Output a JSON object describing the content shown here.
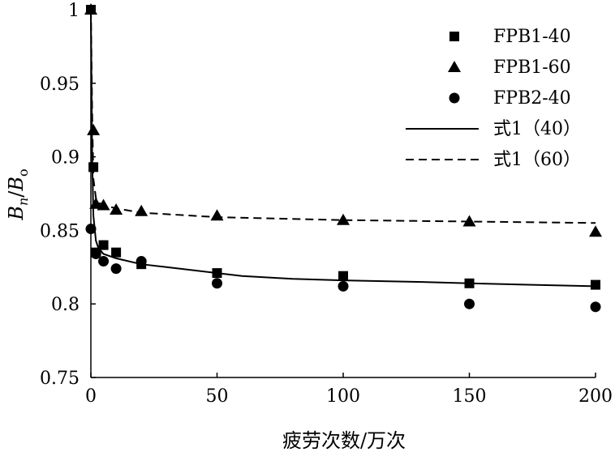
{
  "chart_data": {
    "type": "scatter",
    "xlabel": "疲劳次数/万次",
    "ylabel_parts": {
      "b": "B",
      "sub_n": "n",
      "slash": "/",
      "b2": "B",
      "sub_o": "o"
    },
    "xlim": [
      0,
      200
    ],
    "ylim": [
      0.75,
      1.0
    ],
    "x_ticks": [
      0,
      50,
      100,
      150,
      200
    ],
    "x_tick_labels": [
      "0",
      "50",
      "100",
      "150",
      "200"
    ],
    "y_ticks": [
      0.75,
      0.8,
      0.85,
      0.9,
      0.95,
      1.0
    ],
    "y_tick_labels": [
      "0.75",
      "0.8",
      "0.85",
      "0.9",
      "0.95",
      "1"
    ],
    "grid": false,
    "legend_position": "top-right",
    "series": [
      {
        "name": "FPB1-40",
        "marker": "square",
        "x": [
          0,
          1,
          2,
          5,
          10,
          20,
          50,
          100,
          150,
          200
        ],
        "y": [
          1.0,
          0.893,
          0.835,
          0.84,
          0.835,
          0.827,
          0.821,
          0.819,
          0.814,
          0.813
        ]
      },
      {
        "name": "FPB1-60",
        "marker": "triangle",
        "x": [
          0,
          1,
          2,
          5,
          10,
          20,
          50,
          100,
          150,
          200
        ],
        "y": [
          1.0,
          0.918,
          0.868,
          0.867,
          0.864,
          0.863,
          0.86,
          0.857,
          0.856,
          0.849
        ]
      },
      {
        "name": "FPB2-40",
        "marker": "circle",
        "x": [
          0,
          2,
          5,
          10,
          20,
          50,
          100,
          150,
          200
        ],
        "y": [
          0.851,
          0.834,
          0.829,
          0.824,
          0.829,
          0.814,
          0.812,
          0.8,
          0.798
        ]
      },
      {
        "name": "式1（40）",
        "style": "solid",
        "x": [
          0,
          0.5,
          1,
          2,
          3,
          5,
          10,
          20,
          30,
          50,
          60,
          80,
          100,
          130,
          150,
          175,
          200
        ],
        "y": [
          1.0,
          0.9,
          0.86,
          0.843,
          0.838,
          0.834,
          0.831,
          0.827,
          0.825,
          0.821,
          0.819,
          0.817,
          0.816,
          0.815,
          0.814,
          0.813,
          0.812
        ]
      },
      {
        "name": "式1（60）",
        "style": "dashed",
        "x": [
          0,
          0.5,
          1,
          2,
          3,
          5,
          10,
          20,
          30,
          50,
          100,
          150,
          200
        ],
        "y": [
          1.0,
          0.93,
          0.885,
          0.872,
          0.869,
          0.867,
          0.865,
          0.862,
          0.861,
          0.859,
          0.857,
          0.856,
          0.855
        ]
      }
    ]
  }
}
